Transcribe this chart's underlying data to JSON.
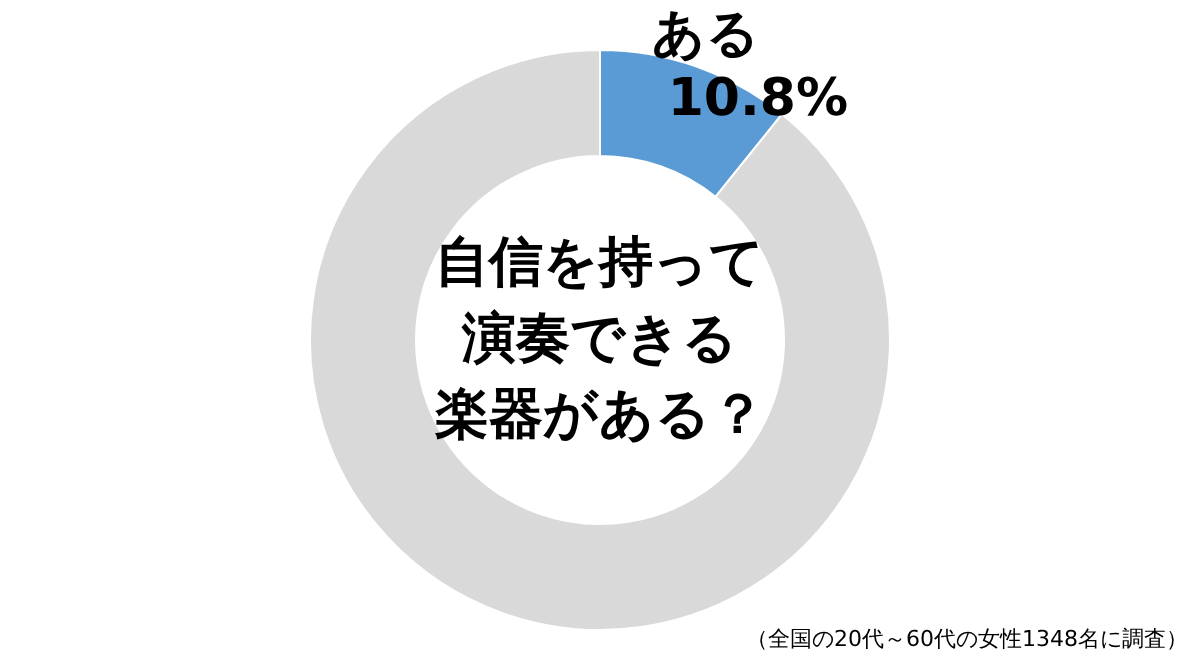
{
  "chart_data": {
    "type": "donut",
    "title": "自信を持って演奏できる楽器がある？",
    "categories": [
      "ある",
      null
    ],
    "values": [
      10.8,
      89.2
    ],
    "colors": [
      "#5b9bd5",
      "#d9d9d9"
    ],
    "value_labels": [
      "10.8%",
      null
    ],
    "annotations": [
      "（全国の20代～60代の女性1348名に調査）"
    ]
  }
}
